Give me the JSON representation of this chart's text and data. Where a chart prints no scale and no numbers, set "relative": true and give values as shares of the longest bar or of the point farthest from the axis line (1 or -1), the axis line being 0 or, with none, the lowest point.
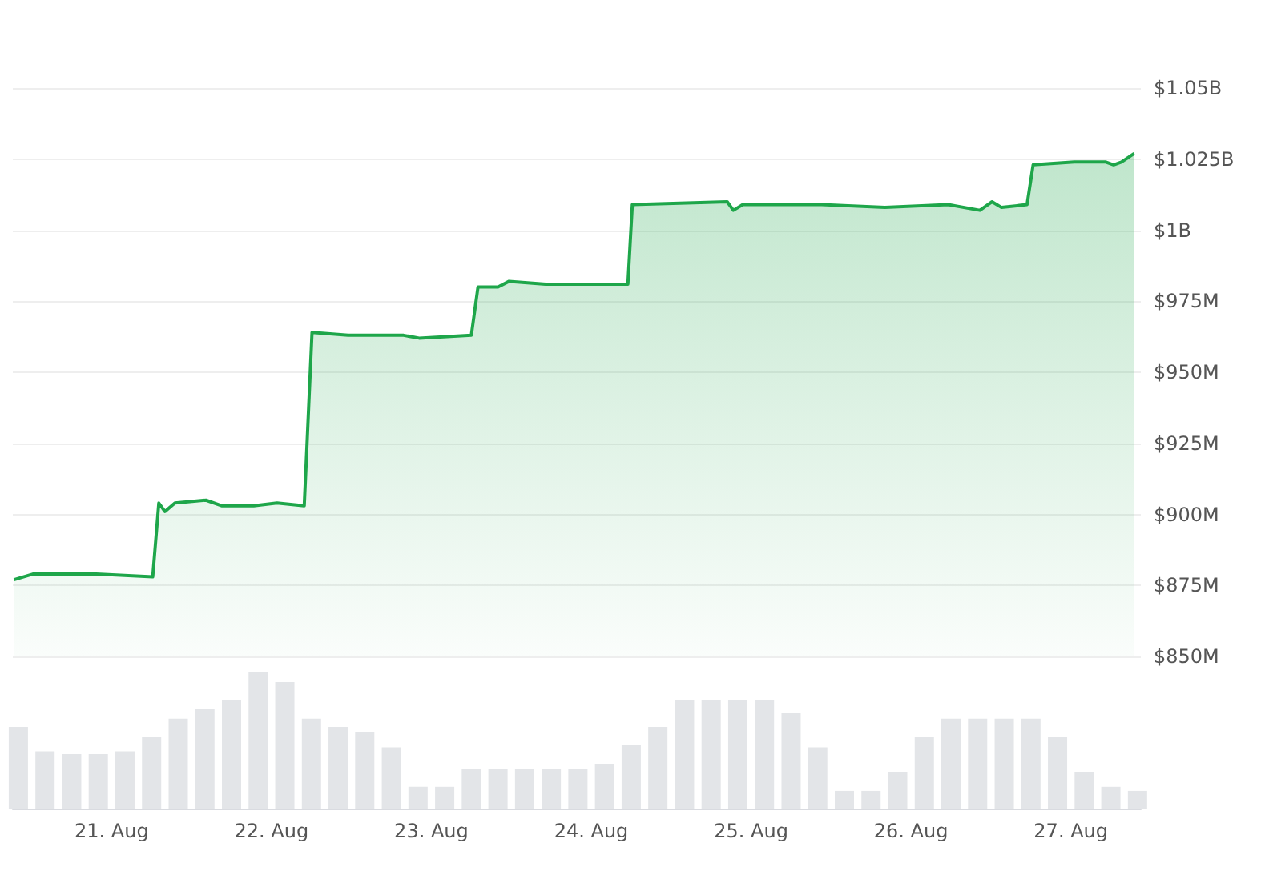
{
  "chart_data": [
    {
      "type": "area",
      "color": "#1ea64a",
      "x": [
        "--08-20T09:20",
        "--08-20T12:10",
        "--08-20T21:40",
        "--08-21T06:10",
        "--08-21T07:05",
        "--08-21T08:00",
        "--08-21T09:30",
        "--08-21T14:10",
        "--08-21T16:35",
        "--08-21T21:20",
        "--08-22T00:50",
        "--08-22T04:55",
        "--08-22T06:05",
        "--08-22T11:30",
        "--08-22T19:50",
        "--08-22T22:10",
        "--08-23T06:00",
        "--08-23T07:00",
        "--08-23T10:00",
        "--08-23T11:40",
        "--08-23T17:10",
        "--08-24T05:30",
        "--08-24T06:10",
        "--08-24T20:25",
        "--08-24T21:20",
        "--08-24T22:45",
        "--08-25T10:35",
        "--08-25T20:05",
        "--08-26T05:35",
        "--08-26T10:20",
        "--08-26T12:10",
        "--08-26T13:35",
        "--08-26T17:25",
        "--08-26T18:20",
        "--08-27T00:30",
        "--08-27T05:15",
        "--08-27T06:25",
        "--08-27T07:35",
        "--08-27T09:30"
      ],
      "values": [
        877000000,
        879000000,
        879000000,
        878000000,
        904000000,
        901000000,
        904000000,
        905000000,
        903000000,
        903000000,
        904000000,
        903000000,
        964000000,
        963000000,
        963000000,
        962000000,
        963000000,
        980000000,
        980000000,
        982000000,
        981000000,
        981000000,
        1009000000,
        1010000000,
        1007000000,
        1009000000,
        1009000000,
        1008000000,
        1009000000,
        1007000000,
        1010000000,
        1008000000,
        1009000000,
        1023000000,
        1024000000,
        1024000000,
        1023000000,
        1024000000,
        1027000000
      ],
      "xlim": [
        "--08-20T09:10",
        "--08-27T10:30"
      ],
      "ylim": [
        850000000,
        1050000000
      ],
      "yticks": [
        {
          "value": 850000000,
          "label": "$850M"
        },
        {
          "value": 875000000,
          "label": "$875M"
        },
        {
          "value": 900000000,
          "label": "$900M"
        },
        {
          "value": 925000000,
          "label": "$925M"
        },
        {
          "value": 950000000,
          "label": "$950M"
        },
        {
          "value": 975000000,
          "label": "$975M"
        },
        {
          "value": 1000000000,
          "label": "$1B"
        },
        {
          "value": 1025000000,
          "label": "$1.025B"
        },
        {
          "value": 1050000000,
          "label": "$1.05B"
        }
      ],
      "grid": "y",
      "tick_labels": "y"
    },
    {
      "type": "bar",
      "relative": true,
      "color": "#e3e5e8",
      "x": [
        "--08-20T10:00",
        "--08-20T14:00",
        "--08-20T18:00",
        "--08-20T22:00",
        "--08-21T02:00",
        "--08-21T06:00",
        "--08-21T10:00",
        "--08-21T14:00",
        "--08-21T18:00",
        "--08-21T22:00",
        "--08-22T02:00",
        "--08-22T06:00",
        "--08-22T10:00",
        "--08-22T14:00",
        "--08-22T18:00",
        "--08-22T22:00",
        "--08-23T02:00",
        "--08-23T06:00",
        "--08-23T10:00",
        "--08-23T14:00",
        "--08-23T18:00",
        "--08-23T22:00",
        "--08-24T02:00",
        "--08-24T06:00",
        "--08-24T10:00",
        "--08-24T14:00",
        "--08-24T18:00",
        "--08-24T22:00",
        "--08-25T02:00",
        "--08-25T06:00",
        "--08-25T10:00",
        "--08-25T14:00",
        "--08-25T18:00",
        "--08-25T22:00",
        "--08-26T02:00",
        "--08-26T06:00",
        "--08-26T10:00",
        "--08-26T14:00",
        "--08-26T18:00",
        "--08-26T22:00",
        "--08-27T02:00",
        "--08-27T06:00",
        "--08-27T10:00"
      ],
      "values": [
        0.6,
        0.42,
        0.4,
        0.4,
        0.42,
        0.53,
        0.66,
        0.73,
        0.8,
        1.0,
        0.93,
        0.66,
        0.6,
        0.56,
        0.45,
        0.16,
        0.16,
        0.29,
        0.29,
        0.29,
        0.29,
        0.29,
        0.33,
        0.47,
        0.6,
        0.8,
        0.8,
        0.8,
        0.8,
        0.7,
        0.45,
        0.13,
        0.13,
        0.27,
        0.53,
        0.66,
        0.66,
        0.66,
        0.66,
        0.53,
        0.27,
        0.16,
        0.13
      ],
      "xlim": [
        "--08-20T09:10",
        "--08-27T10:30"
      ],
      "xticks": [
        {
          "value": "--08-21",
          "label": "21. Aug"
        },
        {
          "value": "--08-22",
          "label": "22. Aug"
        },
        {
          "value": "--08-23",
          "label": "23. Aug"
        },
        {
          "value": "--08-24",
          "label": "24. Aug"
        },
        {
          "value": "--08-25",
          "label": "25. Aug"
        },
        {
          "value": "--08-26",
          "label": "26. Aug"
        },
        {
          "value": "--08-27",
          "label": "27. Aug"
        }
      ],
      "tick_labels": "x"
    }
  ]
}
